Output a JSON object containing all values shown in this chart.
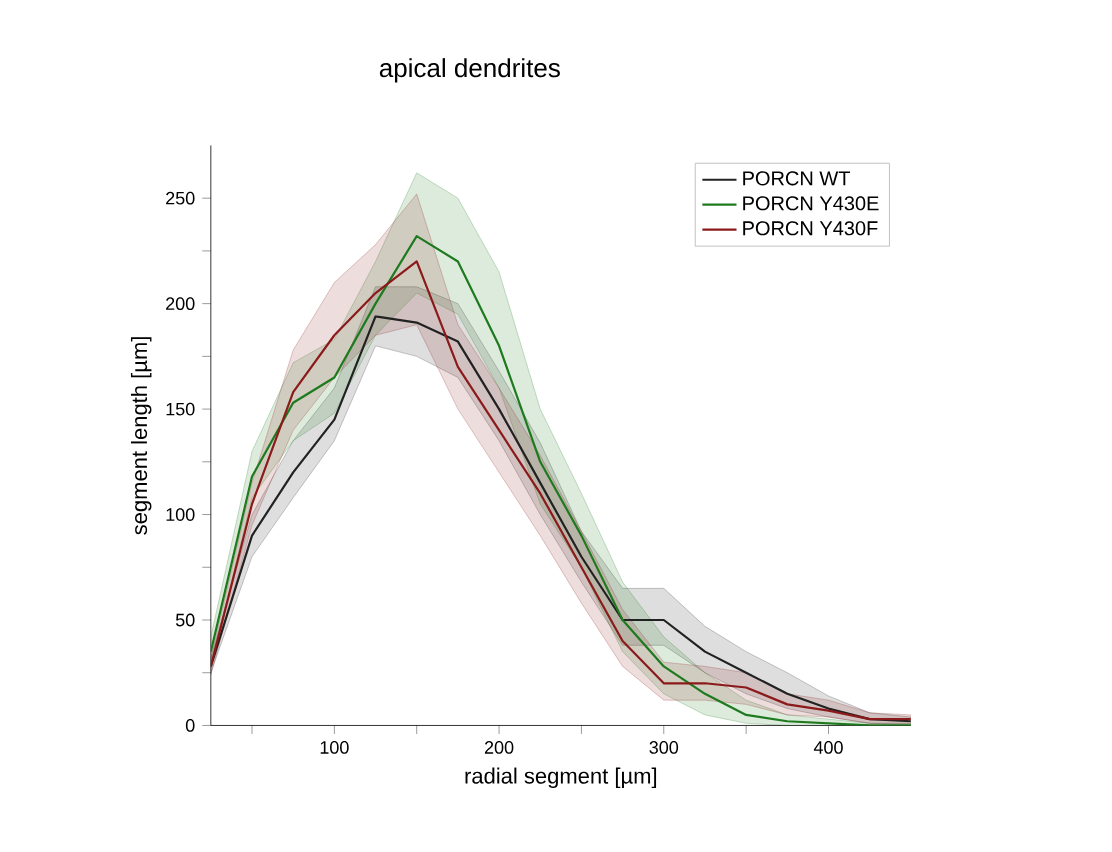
{
  "chart_data": {
    "type": "line",
    "title": "apical dendrites",
    "xlabel": "radial segment [µm]",
    "ylabel": "segment length [µm]",
    "x": [
      25,
      50,
      75,
      100,
      125,
      150,
      175,
      200,
      225,
      250,
      275,
      300,
      325,
      350,
      375,
      400,
      425,
      450
    ],
    "series": [
      {
        "name": "PORCN WT",
        "color": "#222222",
        "values": [
          28,
          90,
          120,
          145,
          194,
          191,
          182,
          150,
          115,
          80,
          50,
          50,
          35,
          25,
          15,
          8,
          3,
          2
        ],
        "lower": [
          25,
          80,
          108,
          135,
          180,
          175,
          165,
          135,
          100,
          68,
          38,
          38,
          25,
          15,
          8,
          4,
          1,
          0
        ],
        "upper": [
          32,
          100,
          135,
          160,
          208,
          208,
          200,
          168,
          134,
          92,
          65,
          65,
          47,
          35,
          25,
          14,
          6,
          4
        ]
      },
      {
        "name": "PORCN Y430E",
        "color": "#1e7a1e",
        "values": [
          35,
          118,
          153,
          165,
          200,
          232,
          220,
          180,
          125,
          90,
          50,
          28,
          15,
          5,
          2,
          1,
          0,
          0
        ],
        "lower": [
          28,
          108,
          135,
          148,
          185,
          205,
          195,
          160,
          105,
          75,
          35,
          15,
          5,
          1,
          0,
          0,
          0,
          0
        ],
        "upper": [
          42,
          130,
          172,
          183,
          220,
          262,
          250,
          215,
          150,
          110,
          68,
          42,
          25,
          12,
          5,
          3,
          1,
          1
        ]
      },
      {
        "name": "PORCN Y430F",
        "color": "#8b1a1a",
        "values": [
          28,
          105,
          158,
          185,
          205,
          220,
          170,
          140,
          110,
          75,
          40,
          20,
          20,
          18,
          10,
          7,
          3,
          3
        ],
        "lower": [
          24,
          95,
          140,
          165,
          185,
          190,
          150,
          120,
          90,
          58,
          28,
          12,
          12,
          10,
          5,
          4,
          1,
          1
        ],
        "upper": [
          32,
          115,
          178,
          210,
          228,
          252,
          190,
          160,
          128,
          92,
          55,
          30,
          28,
          25,
          15,
          12,
          6,
          5
        ]
      }
    ],
    "xlim": [
      25,
      450
    ],
    "ylim": [
      0,
      275
    ],
    "xticks": [
      {
        "value": 50,
        "label": null
      },
      100,
      {
        "value": 150,
        "label": null
      },
      200,
      {
        "value": 250,
        "label": null
      },
      300,
      {
        "value": 350,
        "label": null
      },
      400
    ],
    "yticks": [
      0,
      {
        "value": 25,
        "label": null
      },
      50,
      {
        "value": 75,
        "label": null
      },
      100,
      {
        "value": 125,
        "label": null
      },
      150,
      {
        "value": 175,
        "label": null
      },
      200,
      {
        "value": 225,
        "label": null
      },
      250
    ],
    "legend": "top right",
    "grid": false,
    "marker": "none",
    "line_style": "solid"
  }
}
